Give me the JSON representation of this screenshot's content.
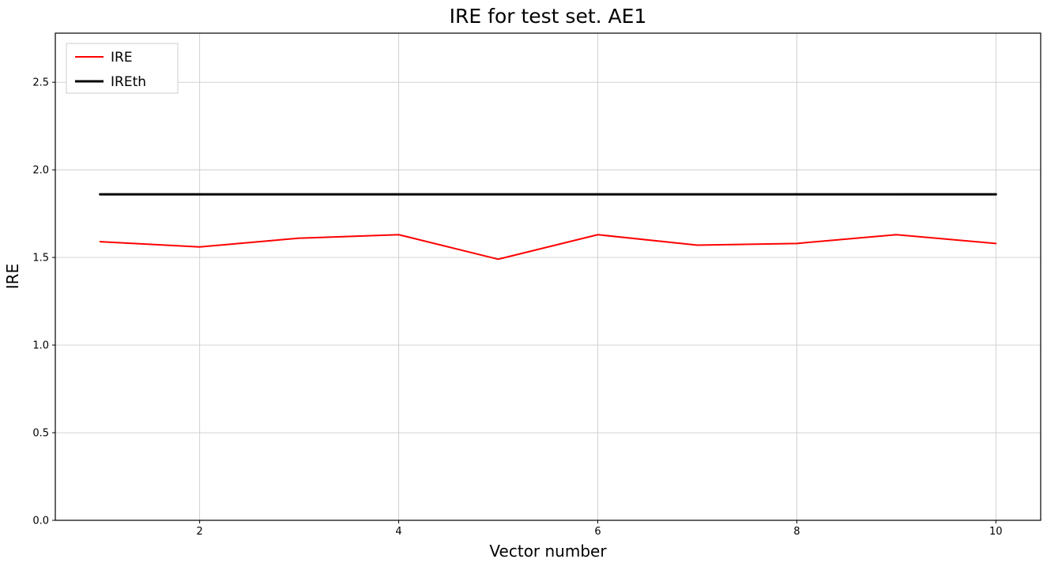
{
  "chart_data": {
    "type": "line",
    "title": "IRE for test set. AE1",
    "xlabel": "Vector number",
    "ylabel": "IRE",
    "x": [
      1,
      2,
      3,
      4,
      5,
      6,
      7,
      8,
      9,
      10
    ],
    "series": [
      {
        "name": "IRE",
        "color": "#ff0000",
        "linewidth": 2,
        "values": [
          1.59,
          1.56,
          1.61,
          1.63,
          1.49,
          1.63,
          1.57,
          1.58,
          1.63,
          1.58
        ]
      },
      {
        "name": "IREth",
        "color": "#000000",
        "linewidth": 3,
        "values": [
          1.86,
          1.86,
          1.86,
          1.86,
          1.86,
          1.86,
          1.86,
          1.86,
          1.86,
          1.86
        ]
      }
    ],
    "xlim": [
      0.55,
      10.45
    ],
    "ylim": [
      0,
      2.78
    ],
    "xticks": [
      2,
      4,
      6,
      8,
      10
    ],
    "xtick_labels": [
      "2",
      "4",
      "6",
      "8",
      "10"
    ],
    "yticks": [
      0,
      0.5,
      1.0,
      1.5,
      2.0,
      2.5
    ],
    "ytick_labels": [
      "0.0",
      "0.5",
      "1.0",
      "1.5",
      "2.0",
      "2.5"
    ],
    "grid": true,
    "grid_color": "#cccccc",
    "border_color": "#000000",
    "background_color": "#ffffff",
    "legend": {
      "position": "upper left",
      "entries": [
        "IRE",
        "IREth"
      ]
    }
  }
}
